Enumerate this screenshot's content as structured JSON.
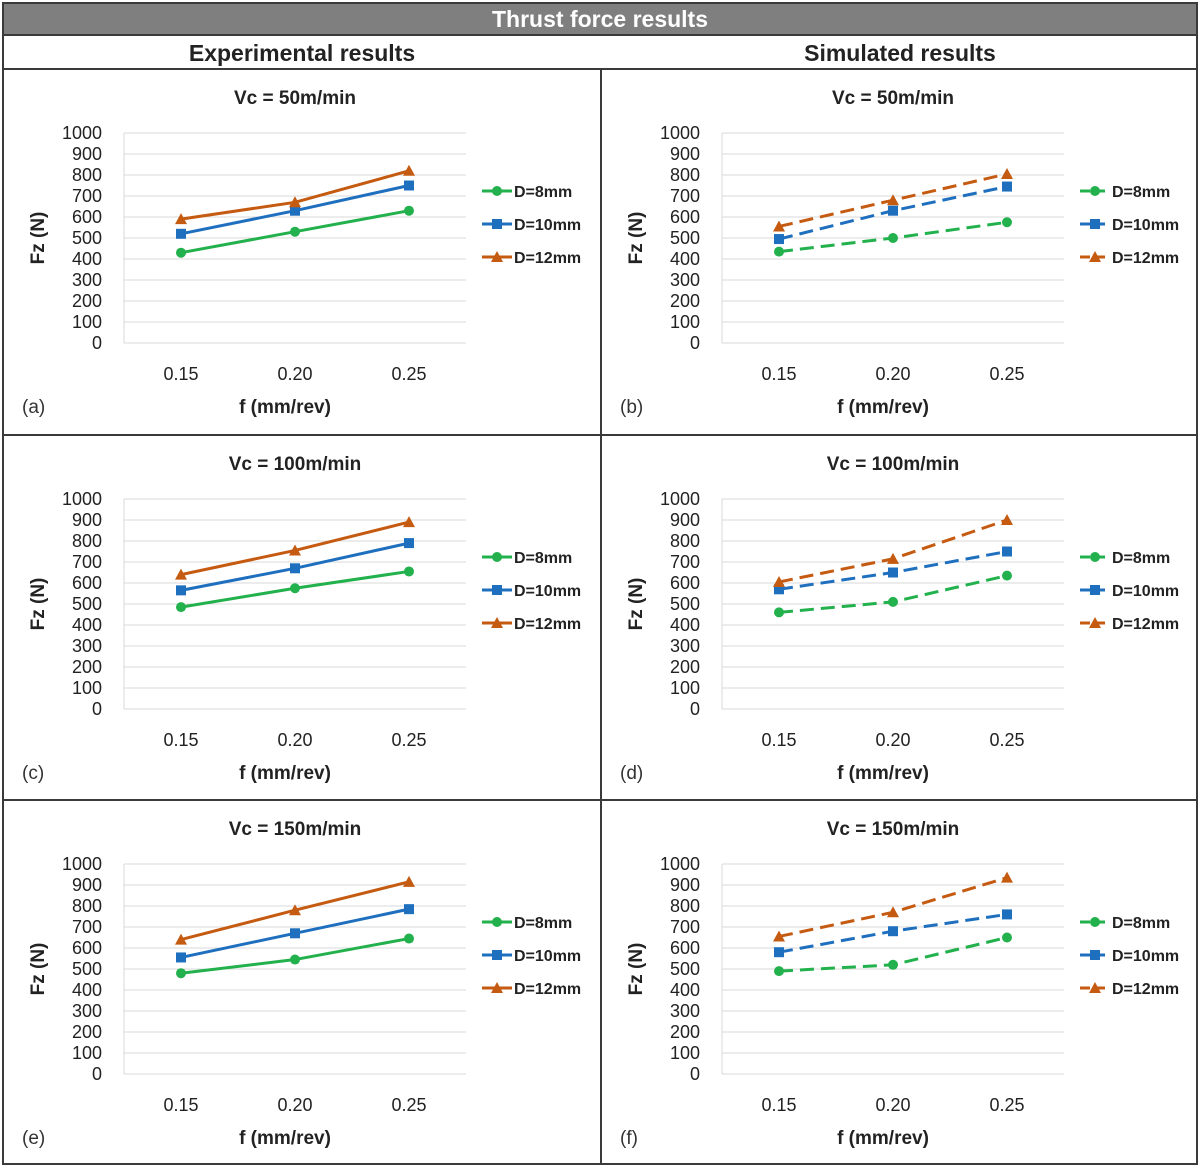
{
  "figure": {
    "title": "Thrust force results",
    "columns": [
      "Experimental results",
      "Simulated results"
    ]
  },
  "colors": {
    "D=8mm": "#22b14c",
    "D=10mm": "#1f6fbf",
    "D=12mm": "#c55a11",
    "grid": "#d9d9d9",
    "border": "#3a3a3a"
  },
  "chart_data": [
    {
      "id": "a",
      "label": "(a)",
      "type": "line",
      "column": "Experimental results",
      "title": "Vc = 50m/min",
      "xlabel": "f (mm/rev)",
      "ylabel": "Fz (N)",
      "categories": [
        "0.15",
        "0.20",
        "0.25"
      ],
      "ylim": [
        0,
        1000
      ],
      "yticks": [
        "0",
        "100",
        "200",
        "300",
        "400",
        "500",
        "600",
        "700",
        "800",
        "900",
        "1000"
      ],
      "line_style": "solid",
      "series": [
        {
          "name": "D=8mm",
          "values": [
            430,
            530,
            630
          ]
        },
        {
          "name": "D=10mm",
          "values": [
            520,
            630,
            750
          ]
        },
        {
          "name": "D=12mm",
          "values": [
            590,
            670,
            820
          ]
        }
      ]
    },
    {
      "id": "b",
      "label": "(b)",
      "type": "line",
      "column": "Simulated results",
      "title": "Vc = 50m/min",
      "xlabel": "f (mm/rev)",
      "ylabel": "Fz (N)",
      "categories": [
        "0.15",
        "0.20",
        "0.25"
      ],
      "ylim": [
        0,
        1000
      ],
      "yticks": [
        "0",
        "100",
        "200",
        "300",
        "400",
        "500",
        "600",
        "700",
        "800",
        "900",
        "1000"
      ],
      "line_style": "dashed",
      "series": [
        {
          "name": "D=8mm",
          "values": [
            435,
            500,
            575
          ]
        },
        {
          "name": "D=10mm",
          "values": [
            495,
            630,
            745
          ]
        },
        {
          "name": "D=12mm",
          "values": [
            555,
            680,
            805
          ]
        }
      ]
    },
    {
      "id": "c",
      "label": "(c)",
      "type": "line",
      "column": "Experimental results",
      "title": "Vc = 100m/min",
      "xlabel": "f (mm/rev)",
      "ylabel": "Fz (N)",
      "categories": [
        "0.15",
        "0.20",
        "0.25"
      ],
      "ylim": [
        0,
        1000
      ],
      "yticks": [
        "0",
        "100",
        "200",
        "300",
        "400",
        "500",
        "600",
        "700",
        "800",
        "900",
        "1000"
      ],
      "line_style": "solid",
      "series": [
        {
          "name": "D=8mm",
          "values": [
            485,
            575,
            655
          ]
        },
        {
          "name": "D=10mm",
          "values": [
            565,
            670,
            790
          ]
        },
        {
          "name": "D=12mm",
          "values": [
            640,
            755,
            890
          ]
        }
      ]
    },
    {
      "id": "d",
      "label": "(d)",
      "type": "line",
      "column": "Simulated results",
      "title": "Vc = 100m/min",
      "xlabel": "f (mm/rev)",
      "ylabel": "Fz (N)",
      "categories": [
        "0.15",
        "0.20",
        "0.25"
      ],
      "ylim": [
        0,
        1000
      ],
      "yticks": [
        "0",
        "100",
        "200",
        "300",
        "400",
        "500",
        "600",
        "700",
        "800",
        "900",
        "1000"
      ],
      "line_style": "dashed",
      "series": [
        {
          "name": "D=8mm",
          "values": [
            460,
            510,
            635
          ]
        },
        {
          "name": "D=10mm",
          "values": [
            570,
            650,
            750
          ]
        },
        {
          "name": "D=12mm",
          "values": [
            605,
            715,
            900
          ]
        }
      ]
    },
    {
      "id": "e",
      "label": "(e)",
      "type": "line",
      "column": "Experimental results",
      "title": "Vc = 150m/min",
      "xlabel": "f (mm/rev)",
      "ylabel": "Fz (N)",
      "categories": [
        "0.15",
        "0.20",
        "0.25"
      ],
      "ylim": [
        0,
        1000
      ],
      "yticks": [
        "0",
        "100",
        "200",
        "300",
        "400",
        "500",
        "600",
        "700",
        "800",
        "900",
        "1000"
      ],
      "line_style": "solid",
      "series": [
        {
          "name": "D=8mm",
          "values": [
            480,
            545,
            645
          ]
        },
        {
          "name": "D=10mm",
          "values": [
            555,
            670,
            785
          ]
        },
        {
          "name": "D=12mm",
          "values": [
            640,
            780,
            915
          ]
        }
      ]
    },
    {
      "id": "f",
      "label": "(f)",
      "type": "line",
      "column": "Simulated results",
      "title": "Vc = 150m/min",
      "xlabel": "f (mm/rev)",
      "ylabel": "Fz (N)",
      "categories": [
        "0.15",
        "0.20",
        "0.25"
      ],
      "ylim": [
        0,
        1000
      ],
      "yticks": [
        "0",
        "100",
        "200",
        "300",
        "400",
        "500",
        "600",
        "700",
        "800",
        "900",
        "1000"
      ],
      "line_style": "dashed",
      "series": [
        {
          "name": "D=8mm",
          "values": [
            490,
            520,
            650
          ]
        },
        {
          "name": "D=10mm",
          "values": [
            580,
            680,
            760
          ]
        },
        {
          "name": "D=12mm",
          "values": [
            655,
            770,
            935
          ]
        }
      ]
    }
  ]
}
